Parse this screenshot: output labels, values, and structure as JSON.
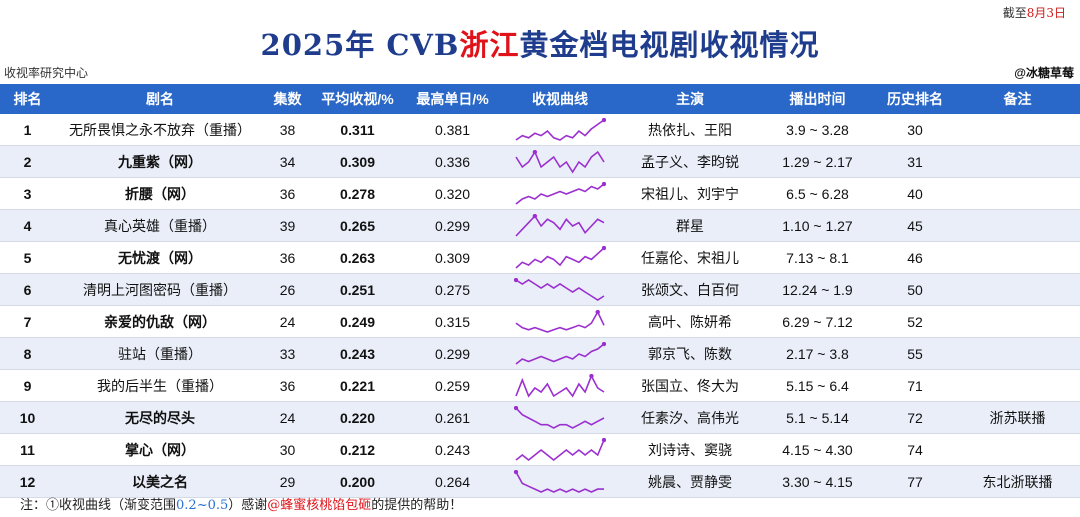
{
  "header": {
    "as_of_prefix": "截至",
    "as_of_date": "8月3日",
    "title_pre": "2025年 CVB",
    "title_hl": "浙江",
    "title_post": "黄金档电视剧收视情况",
    "source": "收视率研究中心",
    "author": "@冰糖草莓"
  },
  "columns": [
    "排名",
    "剧名",
    "集数",
    "平均收视/%",
    "最高单日/%",
    "收视曲线",
    "主演",
    "播出时间",
    "历史排名",
    "备注"
  ],
  "colors": {
    "header_bg": "#2968c8",
    "title": "#1f3d8c",
    "accent_red": "#e0121a",
    "spark": "#9b2fd0"
  },
  "spark_range": [
    0.2,
    0.5
  ],
  "rows": [
    {
      "rank": "1",
      "name": "无所畏惧之永不放弃（重播）",
      "bold": false,
      "episodes": "38",
      "avg": "0.311",
      "peak": "0.381",
      "cast": "热依扎、王阳",
      "period": "3.9 ~ 3.28",
      "hist": "30",
      "note": "",
      "curve": [
        0.29,
        0.31,
        0.3,
        0.32,
        0.31,
        0.33,
        0.3,
        0.29,
        0.31,
        0.3,
        0.33,
        0.31,
        0.34,
        0.36,
        0.38
      ]
    },
    {
      "rank": "2",
      "name": "九重紫（网）",
      "bold": true,
      "episodes": "34",
      "avg": "0.309",
      "peak": "0.336",
      "cast": "孟子义、李昀锐",
      "period": "1.29 ~ 2.17",
      "hist": "31",
      "note": "",
      "curve": [
        0.32,
        0.3,
        0.31,
        0.33,
        0.3,
        0.31,
        0.32,
        0.3,
        0.31,
        0.29,
        0.31,
        0.3,
        0.32,
        0.33,
        0.31
      ]
    },
    {
      "rank": "3",
      "name": "折腰（网）",
      "bold": true,
      "episodes": "36",
      "avg": "0.278",
      "peak": "0.320",
      "cast": "宋祖儿、刘宇宁",
      "period": "6.5 ~ 6.28",
      "hist": "40",
      "note": "",
      "curve": [
        0.24,
        0.26,
        0.27,
        0.26,
        0.28,
        0.27,
        0.28,
        0.29,
        0.28,
        0.29,
        0.3,
        0.29,
        0.31,
        0.3,
        0.32
      ]
    },
    {
      "rank": "4",
      "name": "真心英雄（重播）",
      "bold": false,
      "episodes": "39",
      "avg": "0.265",
      "peak": "0.299",
      "cast": "群星",
      "period": "1.10 ~ 1.27",
      "hist": "45",
      "note": "",
      "curve": [
        0.23,
        0.25,
        0.27,
        0.29,
        0.26,
        0.28,
        0.27,
        0.25,
        0.28,
        0.26,
        0.27,
        0.24,
        0.26,
        0.28,
        0.27
      ]
    },
    {
      "rank": "5",
      "name": "无忧渡（网）",
      "bold": true,
      "episodes": "36",
      "avg": "0.263",
      "peak": "0.309",
      "cast": "任嘉伦、宋祖儿",
      "period": "7.13 ~ 8.1",
      "hist": "46",
      "note": "",
      "curve": [
        0.24,
        0.26,
        0.25,
        0.27,
        0.26,
        0.28,
        0.27,
        0.25,
        0.28,
        0.27,
        0.26,
        0.28,
        0.27,
        0.29,
        0.31
      ]
    },
    {
      "rank": "6",
      "name": "清明上河图密码（重播）",
      "bold": false,
      "episodes": "26",
      "avg": "0.251",
      "peak": "0.275",
      "cast": "张颂文、白百何",
      "period": "12.24 ~ 1.9",
      "hist": "50",
      "note": "",
      "curve": [
        0.27,
        0.26,
        0.27,
        0.26,
        0.25,
        0.26,
        0.25,
        0.26,
        0.25,
        0.24,
        0.25,
        0.24,
        0.23,
        0.22,
        0.23
      ]
    },
    {
      "rank": "7",
      "name": "亲爱的仇敌（网）",
      "bold": true,
      "episodes": "24",
      "avg": "0.249",
      "peak": "0.315",
      "cast": "高叶、陈妍希",
      "period": "6.29 ~ 7.12",
      "hist": "52",
      "note": "",
      "curve": [
        0.26,
        0.24,
        0.23,
        0.24,
        0.23,
        0.22,
        0.23,
        0.24,
        0.23,
        0.24,
        0.25,
        0.24,
        0.26,
        0.31,
        0.25
      ]
    },
    {
      "rank": "8",
      "name": "驻站（重播）",
      "bold": false,
      "episodes": "33",
      "avg": "0.243",
      "peak": "0.299",
      "cast": "郭京飞、陈数",
      "period": "2.17 ~ 3.8",
      "hist": "55",
      "note": "",
      "curve": [
        0.22,
        0.24,
        0.23,
        0.24,
        0.25,
        0.24,
        0.23,
        0.24,
        0.25,
        0.24,
        0.26,
        0.25,
        0.27,
        0.28,
        0.3
      ]
    },
    {
      "rank": "9",
      "name": "我的后半生（重播）",
      "bold": false,
      "episodes": "36",
      "avg": "0.221",
      "peak": "0.259",
      "cast": "张国立、佟大为",
      "period": "5.15 ~ 6.4",
      "hist": "71",
      "note": "",
      "curve": [
        0.21,
        0.25,
        0.21,
        0.23,
        0.22,
        0.24,
        0.21,
        0.22,
        0.23,
        0.21,
        0.24,
        0.22,
        0.26,
        0.23,
        0.22
      ]
    },
    {
      "rank": "10",
      "name": "无尽的尽头",
      "bold": true,
      "episodes": "24",
      "avg": "0.220",
      "peak": "0.261",
      "cast": "任素汐、高伟光",
      "period": "5.1 ~ 5.14",
      "hist": "72",
      "note": "浙苏联播",
      "curve": [
        0.26,
        0.24,
        0.23,
        0.22,
        0.21,
        0.21,
        0.2,
        0.21,
        0.21,
        0.2,
        0.21,
        0.22,
        0.21,
        0.22,
        0.23
      ]
    },
    {
      "rank": "11",
      "name": "掌心（网）",
      "bold": true,
      "episodes": "30",
      "avg": "0.212",
      "peak": "0.243",
      "cast": "刘诗诗、窦骁",
      "period": "4.15 ~ 4.30",
      "hist": "74",
      "note": "",
      "curve": [
        0.2,
        0.21,
        0.2,
        0.21,
        0.22,
        0.21,
        0.2,
        0.21,
        0.22,
        0.21,
        0.22,
        0.21,
        0.22,
        0.21,
        0.24
      ]
    },
    {
      "rank": "12",
      "name": "以美之名",
      "bold": true,
      "episodes": "29",
      "avg": "0.200",
      "peak": "0.264",
      "cast": "姚晨、贾静雯",
      "period": "3.30 ~ 4.15",
      "hist": "77",
      "note": "东北浙联播",
      "curve": [
        0.26,
        0.22,
        0.21,
        0.2,
        0.19,
        0.2,
        0.19,
        0.2,
        0.19,
        0.2,
        0.19,
        0.2,
        0.19,
        0.2,
        0.2
      ]
    }
  ],
  "footnote": {
    "pre": "注：①收视曲线（渐变范围",
    "range": "0.2~0.5",
    "mid": "）感谢",
    "thanks": "@蜂蜜核桃馅包砸",
    "post": "的提供的帮助！"
  }
}
